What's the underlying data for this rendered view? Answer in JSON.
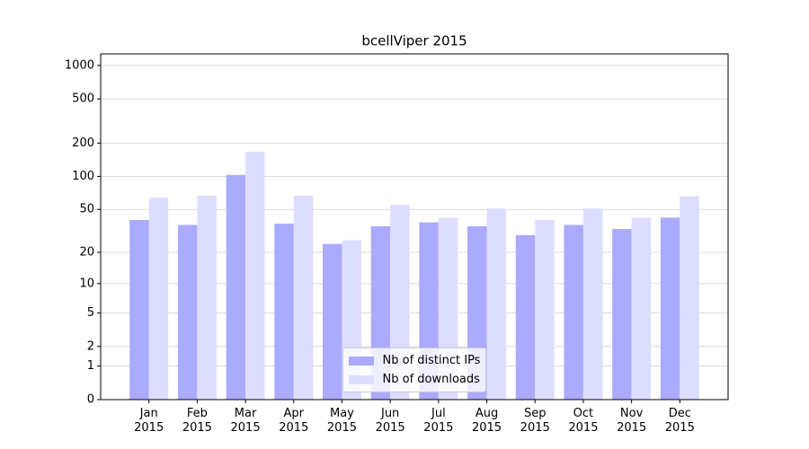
{
  "chart_data": {
    "type": "bar",
    "title": "bcellViper 2015",
    "categories": [
      "Jan\n2015",
      "Feb\n2015",
      "Mar\n2015",
      "Apr\n2015",
      "May\n2015",
      "Jun\n2015",
      "Jul\n2015",
      "Aug\n2015",
      "Sep\n2015",
      "Oct\n2015",
      "Nov\n2015",
      "Dec\n2015"
    ],
    "series": [
      {
        "name": "Nb of distinct IPs",
        "color": "#aaaaff",
        "values": [
          40,
          36,
          103,
          37,
          24,
          35,
          38,
          35,
          29,
          36,
          33,
          42
        ]
      },
      {
        "name": "Nb of downloads",
        "color": "#ddddff",
        "values": [
          64,
          67,
          167,
          67,
          26,
          55,
          42,
          51,
          40,
          51,
          42,
          66
        ]
      }
    ],
    "yscale": "log1p",
    "ylim": [
      0,
      1270
    ],
    "yticks": [
      0,
      1,
      2,
      5,
      10,
      20,
      50,
      100,
      200,
      500,
      1000
    ],
    "grid": true,
    "legend": "lower center"
  }
}
